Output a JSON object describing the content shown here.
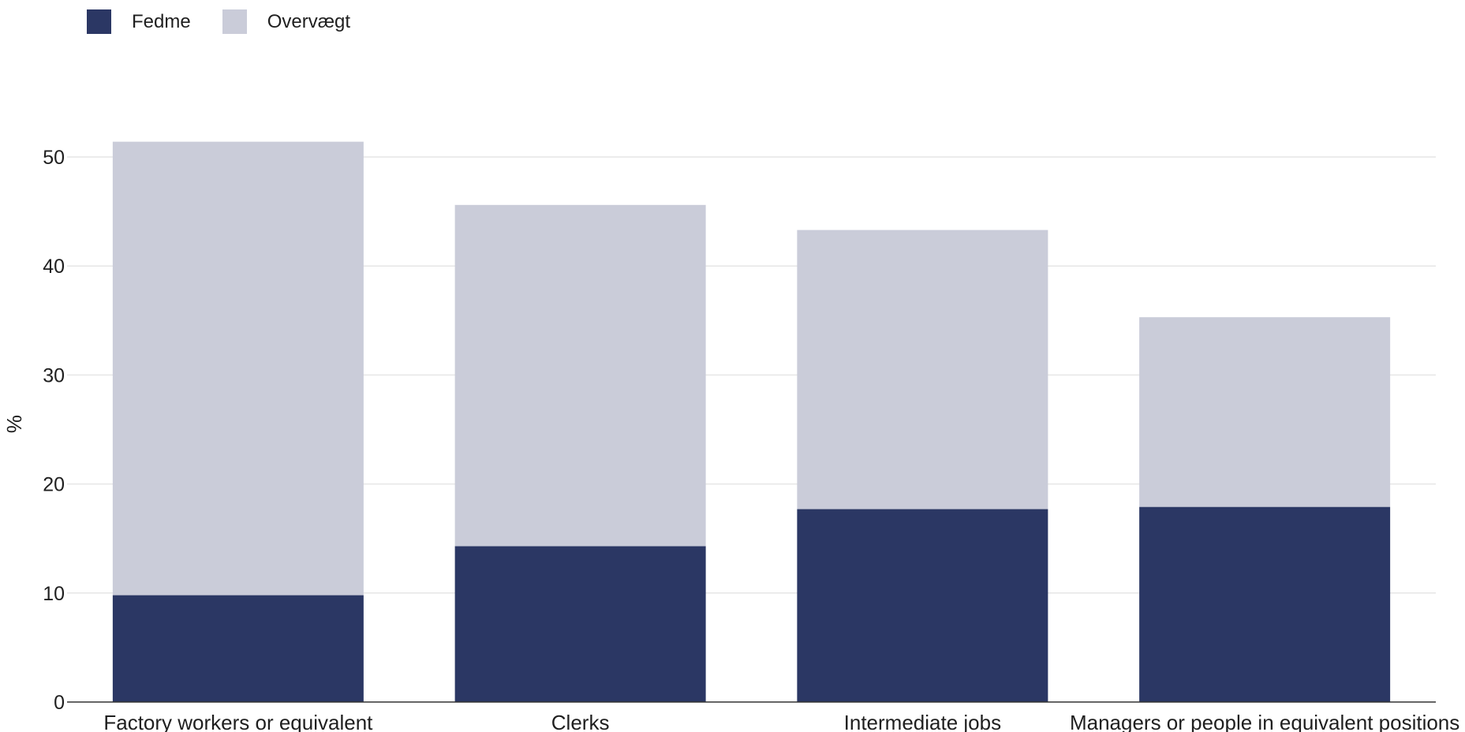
{
  "chart_data": {
    "type": "bar",
    "stacked": true,
    "categories": [
      "Factory workers or equivalent",
      "Clerks",
      "Intermediate jobs",
      "Managers or people in equivalent positions"
    ],
    "series": [
      {
        "name": "Fedme",
        "color": "#2b3764",
        "values": [
          9.8,
          14.3,
          17.7,
          17.9
        ]
      },
      {
        "name": "Overvægt",
        "color": "#caccd9",
        "values": [
          41.6,
          31.3,
          25.6,
          17.4
        ]
      }
    ],
    "ylabel": "%",
    "xlabel": "",
    "ylim": [
      0,
      50
    ],
    "yticks": [
      0,
      10,
      20,
      30,
      40,
      50
    ],
    "grid": true,
    "legend_position": "top-left"
  }
}
